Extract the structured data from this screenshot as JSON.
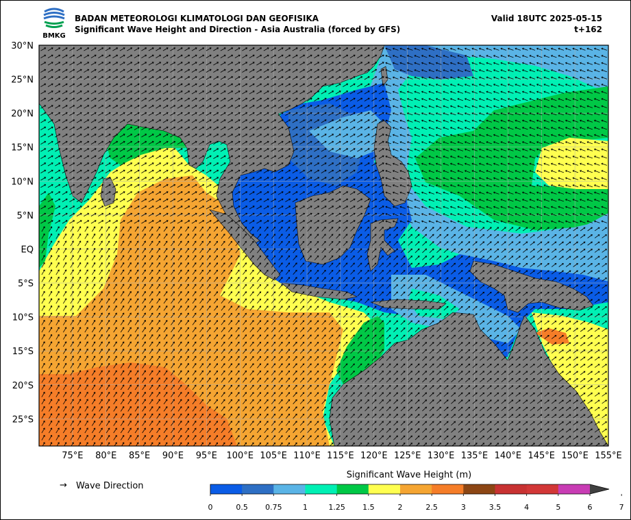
{
  "header": {
    "agency": "BADAN METEOROLOGI KLIMATOLOGI DAN GEOFISIKA",
    "subtitle": "Significant Wave Height and Direction - Asia Australia (forced by GFS)",
    "valid": "Valid 18UTC 2025-05-15",
    "lead": "t+162",
    "logo_text": "BMKG"
  },
  "map": {
    "lon_range": [
      70,
      155
    ],
    "lat_range": [
      -29,
      30
    ],
    "lat_labels": [
      "30°N",
      "25°N",
      "20°N",
      "15°N",
      "10°N",
      "5°N",
      "EQ",
      "5°S",
      "10°S",
      "15°S",
      "20°S",
      "25°S"
    ],
    "lon_labels": [
      "75°E",
      "80°E",
      "85°E",
      "90°E",
      "95°E",
      "100°E",
      "105°E",
      "110°E",
      "115°E",
      "120°E",
      "125°E",
      "130°E",
      "135°E",
      "140°E",
      "145°E",
      "150°E",
      "155°E"
    ],
    "colors": {
      "land": "#808080",
      "grid": "#b0b0b0",
      "arrow": "#000000"
    }
  },
  "legend": {
    "arrow_symbol": "→",
    "direction_label": "Wave Direction",
    "colorbar_title": "Significant Wave Height (m)",
    "bounds": [
      "0",
      "0.5",
      "0.75",
      "1",
      "1.25",
      "1.5",
      "2",
      "2.5",
      "3",
      "3.5",
      "4",
      "5",
      "6",
      "7"
    ],
    "colors": [
      "#0a5ce6",
      "#2e6fc4",
      "#5ab4e6",
      "#00f0b4",
      "#00c846",
      "#ffff50",
      "#f5a532",
      "#f57d28",
      "#8c4614",
      "#c83232",
      "#d23737",
      "#c83cb4",
      "#c83cb4"
    ]
  }
}
